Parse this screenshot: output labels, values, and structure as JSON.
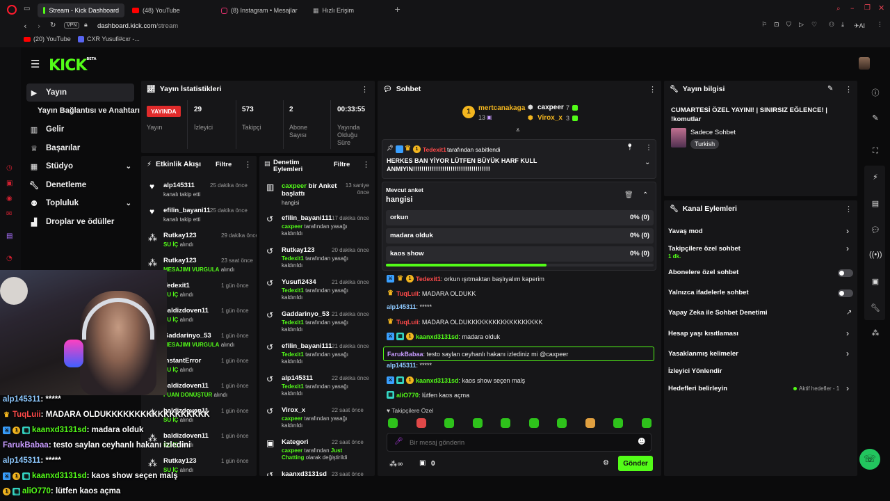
{
  "browser": {
    "tabs": [
      {
        "label": "Stream - Kick Dashboard",
        "active": true
      },
      {
        "label": "(48) YouTube"
      },
      {
        "label": "(8) Instagram • Mesajlar"
      },
      {
        "label": "Hızlı Erişim"
      }
    ],
    "vpn": "VPN",
    "url_host": "dashboard.kick.com",
    "url_path": "/stream",
    "ai_label": "AI",
    "bookmarks": [
      "(20) YouTube",
      "CXR Yusufi#cxr -..."
    ]
  },
  "header": {
    "logo": "KICK",
    "beta": "BETA"
  },
  "nav": [
    {
      "label": "Yayın",
      "icon": "camera-icon",
      "active": true
    },
    {
      "label": "Yayın Bağlantısı ve Anahtarı",
      "icon": "",
      "sub": true
    },
    {
      "label": "Gelir",
      "icon": "chart-icon"
    },
    {
      "label": "Başarılar",
      "icon": "trophy-icon"
    },
    {
      "label": "Stüdyo",
      "icon": "studio-icon",
      "chevron": true
    },
    {
      "label": "Denetleme",
      "icon": "wrench-icon"
    },
    {
      "label": "Topluluk",
      "icon": "community-icon",
      "chevron": true
    },
    {
      "label": "Droplar ve ödüller",
      "icon": "gift-icon"
    }
  ],
  "stats": {
    "title": "Yayın İstatistikleri",
    "live": "YAYINDA",
    "live_label": "Yayın",
    "items": [
      {
        "value": "29",
        "label": "İzleyici"
      },
      {
        "value": "573",
        "label": "Takipçi"
      },
      {
        "value": "2",
        "label": "Abone Sayısı"
      },
      {
        "value": "00:33:55",
        "label": "Yayında Olduğu Süre"
      }
    ]
  },
  "activity": {
    "title": "Etkinlik Akışı",
    "filter": "Filtre",
    "items": [
      {
        "name": "alp145311",
        "time": "25 dakika önce",
        "sub": "kanalı takip etti",
        "icon": "heart"
      },
      {
        "name": "efilin_bayani111",
        "time": "25 dakika önce",
        "sub": "kanalı takip etti",
        "icon": "heart"
      },
      {
        "name": "Rutkay123",
        "time": "29 dakika önce",
        "sub": "SU İÇ",
        "sub2": "alındı",
        "icon": "drop"
      },
      {
        "name": "Rutkay123",
        "time": "23 saat önce",
        "sub": "MESAJIMI VURGULA",
        "sub2": "alındı",
        "icon": "drop"
      },
      {
        "name": "Tedexit1",
        "time": "1 gün önce",
        "sub": "SU İÇ",
        "sub2": "alındı",
        "icon": "drop"
      },
      {
        "name": "baldizdoven11",
        "time": "1 gün önce",
        "sub": "SU İÇ",
        "sub2": "alındı",
        "icon": "drop"
      },
      {
        "name": "Gaddarinyo_53",
        "time": "1 gün önce",
        "sub": "MESAJIMI VURGULA",
        "sub2": "alındı",
        "icon": "drop"
      },
      {
        "name": "InstantError",
        "time": "1 gün önce",
        "sub": "SU İÇ",
        "sub2": "alındı",
        "icon": "drop"
      },
      {
        "name": "baldizdoven11",
        "time": "1 gün önce",
        "sub": "PUAN DÖNÜŞTÜR",
        "sub2": "alındı",
        "icon": "drop"
      },
      {
        "name": "baldizdoven11",
        "time": "1 gün önce",
        "sub": "SU İÇ",
        "sub2": "alındı",
        "icon": "drop"
      },
      {
        "name": "baldizdoven11",
        "time": "1 gün önce",
        "sub": "SU İÇ",
        "sub2": "alındı",
        "icon": "drop"
      },
      {
        "name": "Rutkay123",
        "time": "1 gün önce",
        "sub": "SU İÇ",
        "sub2": "alındı",
        "icon": "drop"
      }
    ]
  },
  "moderation": {
    "title": "Denetim Eylemleri",
    "filter": "Filtre",
    "items": [
      {
        "name": "caxpeer",
        "name_suffix": "bir Anket başlattı",
        "time": "13 saniye önce",
        "sub": "hangisi",
        "icon": "poll",
        "green_name": true
      },
      {
        "name": "efilin_bayani111",
        "time": "17 dakika önce",
        "by": "caxpeer",
        "sub": "tarafından yasağı kaldırıldı",
        "icon": "undo"
      },
      {
        "name": "Rutkay123",
        "time": "20 dakika önce",
        "by": "Tedexit1",
        "sub": "tarafından yasağı kaldırıldı",
        "icon": "undo"
      },
      {
        "name": "Yusufi2434",
        "time": "21 dakika önce",
        "by": "Tedexit1",
        "sub": "tarafından yasağı kaldırıldı",
        "icon": "undo"
      },
      {
        "name": "Gaddarinyo_53",
        "time": "21 dakika önce",
        "by": "Tedexit1",
        "sub": "tarafından yasağı kaldırıldı",
        "icon": "undo"
      },
      {
        "name": "efilin_bayani111",
        "time": "21 dakika önce",
        "by": "Tedexit1",
        "sub": "tarafından yasağı kaldırıldı",
        "icon": "undo"
      },
      {
        "name": "alp145311",
        "time": "22 dakika önce",
        "by": "Tedexit1",
        "sub": "tarafından yasağı kaldırıldı",
        "icon": "undo"
      },
      {
        "name": "Virox_x",
        "time": "22 saat önce",
        "by": "caxpeer",
        "sub": "tarafından yasağı kaldırıldı",
        "icon": "undo"
      },
      {
        "name": "Kategori",
        "time": "22 saat önce",
        "by": "caxpeer",
        "sub": "tarafından",
        "extra": "Just Chatting",
        "extra2": "olarak değiştirildi",
        "icon": "category"
      },
      {
        "name": "kaanxd3131sd",
        "time": "23 saat önce",
        "sub": "",
        "icon": "undo"
      }
    ]
  },
  "chat": {
    "title": "Sohbet",
    "top": [
      {
        "name": "mertcanakaga",
        "count": "13",
        "rank": "1"
      },
      {
        "name": "caxpeer",
        "count": "7"
      },
      {
        "name": "Virox_x",
        "count": "3"
      }
    ],
    "pinned": {
      "by": "Tedexit1",
      "by_suffix": "tarafından sabitlendi",
      "text": "HERKES BAN YİYOR LÜTFEN BÜYÜK HARF KULLANMIYIN!!!!!!!!!!!!!!!!!!!!!!!!!!!!!!!!!!!!!"
    },
    "poll": {
      "label": "Mevcut anket",
      "question": "hangisi",
      "options": [
        {
          "text": "orkun",
          "result": "0% (0)"
        },
        {
          "text": "madara olduk",
          "result": "0% (0)"
        },
        {
          "text": "kaos show",
          "result": "0% (0)"
        }
      ],
      "progress": 0.6
    },
    "messages": [
      {
        "user": "Tedexit1",
        "color": "#ff4a4a",
        "text": ": orkun ışıtmaktan başlıyalım kaperim",
        "badges": [
          "blue",
          "crown",
          "gold"
        ]
      },
      {
        "user": "TuqLuii",
        "color": "#ff4a4a",
        "text": ": MADARA OLDUKK",
        "badges": [
          "crown"
        ]
      },
      {
        "user": "alp145311",
        "color": "#8ec9ff",
        "text": ": *****",
        "badges": []
      },
      {
        "user": "TuqLuii",
        "color": "#ff4a4a",
        "text": ": MADARA OLDUKKKKKKKKKKKKKKKKKK",
        "badges": [
          "crown"
        ]
      },
      {
        "user": "kaanxd3131sd",
        "color": "#53fc18",
        "text": ": madara olduk",
        "badges": [
          "blue",
          "teal",
          "gold"
        ]
      },
      {
        "user": "FarukBabaa",
        "color": "#c89cff",
        "text": ": testo saylan ceyhanlı hakanı izlediniz mi @caxpeer",
        "badges": [],
        "highlight": true
      },
      {
        "user": "alp145311",
        "color": "#8ec9ff",
        "text": ": *****",
        "badges": []
      },
      {
        "user": "kaanxd3131sd",
        "color": "#53fc18",
        "text": ": kaos show seçen malş",
        "badges": [
          "blue",
          "teal",
          "gold"
        ]
      },
      {
        "user": "aliO770",
        "color": "#53fc18",
        "text": ": lütfen kaos açma",
        "badges": [
          "teal"
        ]
      }
    ],
    "followers_only": "Takipçilere Özel",
    "placeholder": "Bir mesaj gönderin",
    "points": "0",
    "send": "Gönder"
  },
  "stream_info": {
    "title": "Yayın bilgisi",
    "stream_title": "CUMARTESİ ÖZEL YAYINI! | SINIRSIZ EĞLENCE! | !komutlar",
    "category": "Sadece Sohbet",
    "tag": "Turkish"
  },
  "channel_actions": {
    "title": "Kanal Eylemleri",
    "items": [
      {
        "label": "Yavaş mod",
        "type": "chevron"
      },
      {
        "label": "Takipçilere özel sohbet",
        "sub": "1 dk.",
        "type": "chevron"
      },
      {
        "label": "Abonelere özel sohbet",
        "type": "toggle"
      },
      {
        "label": "Yalnızca ifadelerle sohbet",
        "type": "toggle"
      },
      {
        "label": "Yapay Zeka ile Sohbet Denetimi",
        "type": "external"
      },
      {
        "label": "Hesap yaşı kısıtlaması",
        "type": "chevron"
      },
      {
        "label": "Yasaklanmış kelimeler",
        "type": "chevron"
      },
      {
        "label": "İzleyici Yönlendir",
        "type": "none"
      },
      {
        "label": "Hedefleri belirleyin",
        "type": "chevron",
        "note": "Aktif hedefler - 1"
      }
    ]
  },
  "overlay_chat": [
    {
      "user": "alp145311",
      "color": "#8ec9ff",
      "text": " : *****",
      "badges": []
    },
    {
      "user": "TuqLuii",
      "color": "#ff4a4a",
      "text": " : MADARA OLDUKKKKKKKKKKKKKKKKKK",
      "badges": [
        "crown"
      ]
    },
    {
      "user": "kaanxd3131sd",
      "color": "#53fc18",
      "text": " : madara olduk",
      "badges": [
        "blue",
        "gold",
        "teal"
      ]
    },
    {
      "user": "FarukBabaa",
      "color": "#c89cff",
      "text": " : testo saylan ceyhanlı hakanı izledini",
      "badges": []
    },
    {
      "user": "alp145311",
      "color": "#8ec9ff",
      "text": " : *****",
      "badges": []
    },
    {
      "user": "kaanxd3131sd",
      "color": "#53fc18",
      "text": " : kaos show seçen malş",
      "badges": [
        "blue",
        "gold",
        "teal"
      ]
    },
    {
      "user": "aliO770",
      "color": "#53fc18",
      "text": " : lütfen kaos açma",
      "badges": [
        "gold",
        "teal"
      ]
    }
  ],
  "colors": {
    "accent": "#53fc18",
    "live": "#e02b2b",
    "panel": "#161618",
    "bg": "#0b0b0c"
  }
}
